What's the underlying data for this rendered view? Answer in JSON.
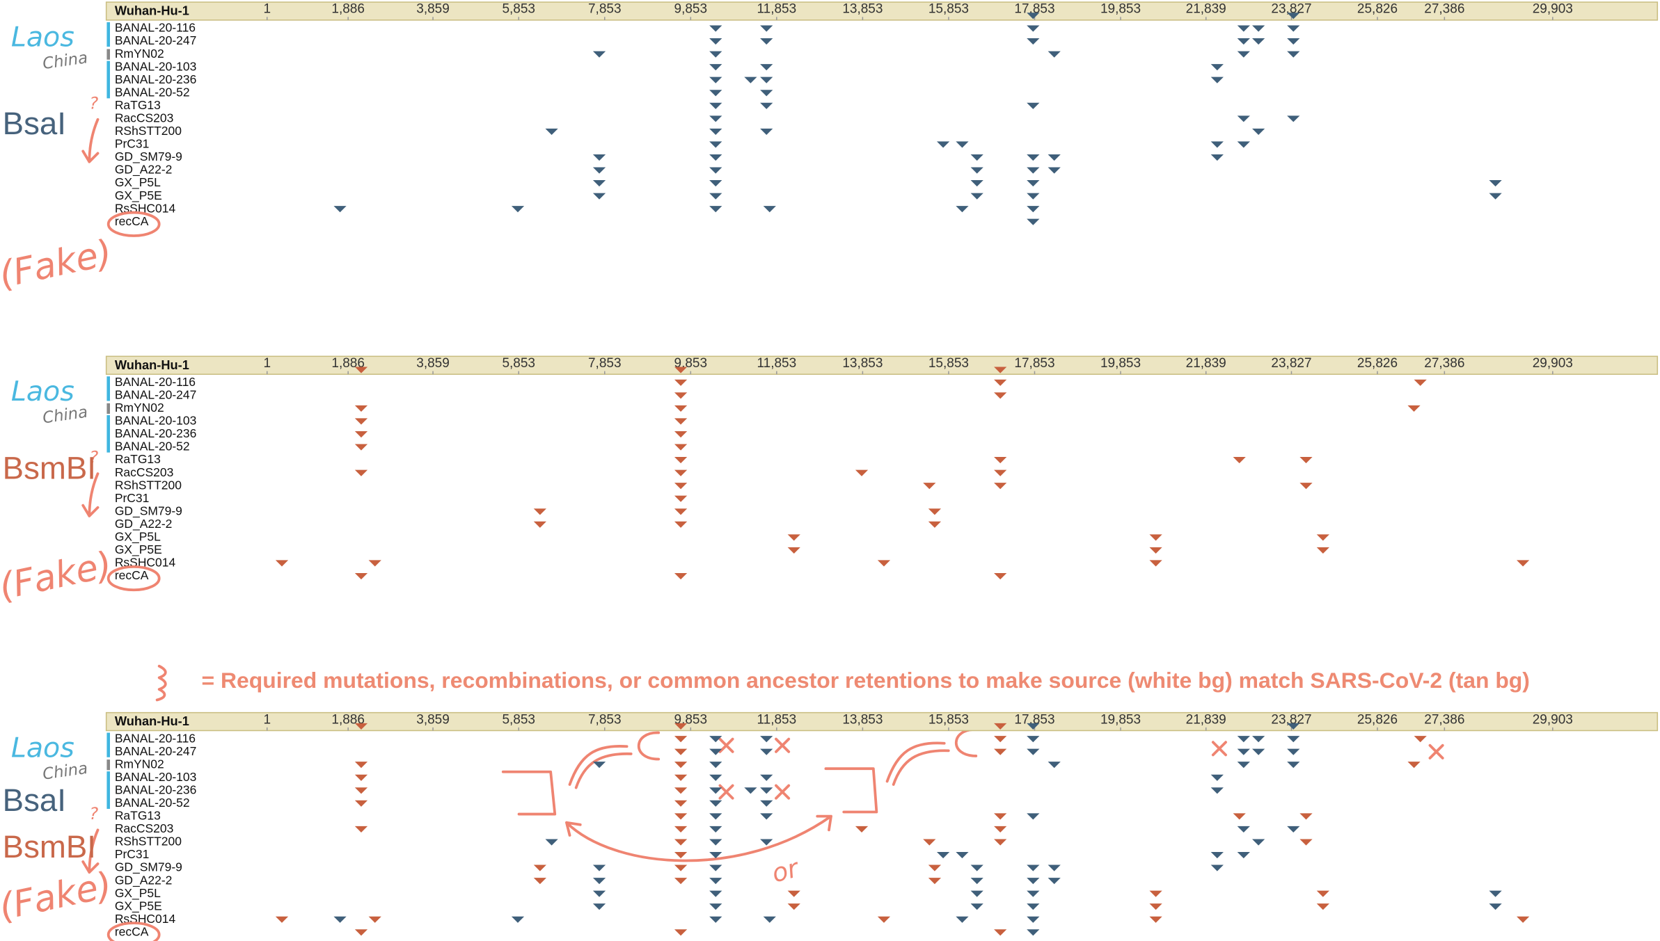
{
  "ruler": {
    "reference": "Wuhan-Hu-1",
    "ticks": [
      1,
      {
        "value": 1886,
        "label": "1,886"
      },
      {
        "value": 3859,
        "label": "3,859"
      },
      {
        "value": 5853,
        "label": "5,853"
      },
      {
        "value": 7853,
        "label": "7,853"
      },
      {
        "value": 9853,
        "label": "9,853"
      },
      {
        "value": 11853,
        "label": "11,853"
      },
      {
        "value": 13853,
        "label": "13,853"
      },
      {
        "value": 15853,
        "label": "15,853"
      },
      {
        "value": 17853,
        "label": "17,853"
      },
      {
        "value": 19853,
        "label": "19,853"
      },
      {
        "value": 21839,
        "label": "21,839"
      },
      {
        "value": 23827,
        "label": "23,827"
      },
      {
        "value": 25826,
        "label": "25,826"
      },
      {
        "value": 27386,
        "label": "27,386"
      },
      {
        "value": 29903,
        "label": "29,903"
      }
    ]
  },
  "sequences": [
    "BANAL-20-116",
    "BANAL-20-247",
    "RmYN02",
    "BANAL-20-103",
    "BANAL-20-236",
    "BANAL-20-52",
    "RaTG13",
    "RacCS203",
    "RShSTT200",
    "PrC31",
    "GD_SM79-9",
    "GD_A22-2",
    "GX_P5L",
    "GX_P5E",
    "RsSHC014",
    "recCA"
  ],
  "enzymes": [
    {
      "name": "BsaI",
      "color": "#3f5f7a",
      "reference_sites": [
        17818,
        23872
      ],
      "sites": [
        [
          10435,
          11616,
          17818,
          22715,
          23060,
          23872
        ],
        [
          10435,
          11616,
          17818,
          22715,
          23060,
          23872
        ],
        [
          7728,
          10435,
          18310,
          22715,
          23872
        ],
        [
          10435,
          11616,
          22100
        ],
        [
          10435,
          11247,
          11616,
          22100
        ],
        [
          10435,
          11616
        ],
        [
          10435,
          11616,
          17818
        ],
        [
          10435,
          22715,
          23872
        ],
        [
          6620,
          10435,
          11616,
          23060
        ],
        [
          10435,
          15726,
          16169,
          22100,
          22715
        ],
        [
          7728,
          10435,
          16513,
          17818,
          18310,
          22100
        ],
        [
          7728,
          10435,
          16513,
          17818,
          18310
        ],
        [
          7728,
          10435,
          16513,
          17818,
          28572
        ],
        [
          7728,
          10435,
          16513,
          17818,
          28572
        ],
        [
          1698,
          5833,
          10435,
          11690,
          16169,
          17818
        ],
        [
          17818
        ]
      ]
    },
    {
      "name": "BsmBI",
      "color": "#c8603e",
      "reference_sites": [
        2190,
        9623,
        17055
      ],
      "sites": [
        [
          9623,
          17055,
          26825
        ],
        [
          9623,
          17055
        ],
        [
          2190,
          9623,
          26677
        ],
        [
          2190,
          9623
        ],
        [
          2190,
          9623
        ],
        [
          2190,
          9623
        ],
        [
          9623,
          17055,
          22616,
          24167
        ],
        [
          2190,
          9623,
          13831,
          17055
        ],
        [
          9623,
          15406,
          17055,
          24167
        ],
        [
          9623
        ],
        [
          6349,
          9623,
          15529
        ],
        [
          6349,
          9623,
          15529
        ],
        [
          12256,
          20672,
          24561
        ],
        [
          12256,
          20672,
          24561
        ],
        [
          345,
          2510,
          14348,
          20672,
          29212
        ],
        [
          2190,
          9623,
          17055
        ]
      ]
    }
  ],
  "annotations": {
    "laos": "Laos",
    "china": "China",
    "question": "?",
    "fake": "(Fake)",
    "legend": "= Required mutations, recombinations, or common ancestor retentions to make source (white bg) match SARS-CoV-2 (tan bg)",
    "or": "or"
  }
}
